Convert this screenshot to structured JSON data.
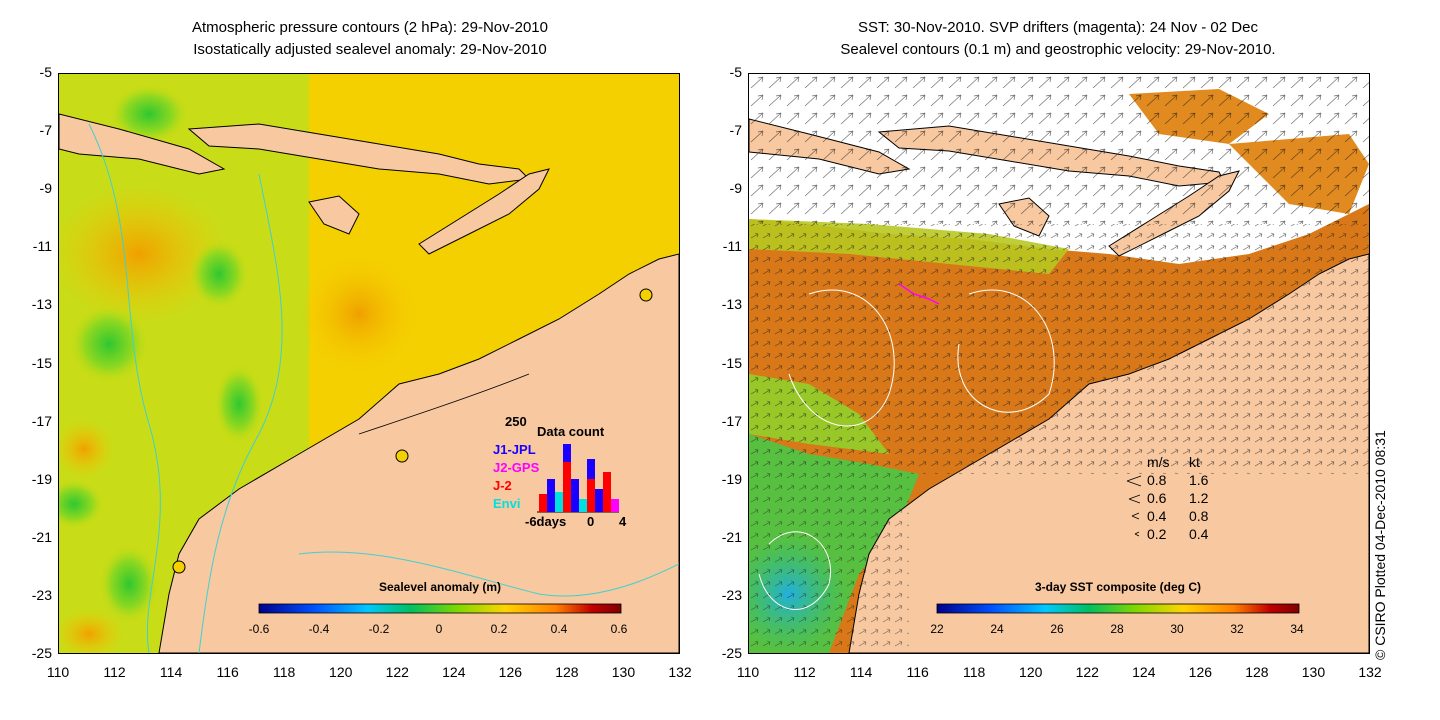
{
  "left_panel": {
    "title_line1": "Atmospheric pressure contours (2 hPa): 29-Nov-2010",
    "title_line2": "Isostatically adjusted sealevel anomaly: 29-Nov-2010",
    "colorbar": {
      "title": "Sealevel anomaly (m)",
      "ticks": [
        "-0.6",
        "-0.4",
        "-0.2",
        "0",
        "0.2",
        "0.4",
        "0.6"
      ],
      "colors": [
        "#00008b",
        "#0050ff",
        "#00c8ff",
        "#00c060",
        "#80d800",
        "#ffd400",
        "#ff8000",
        "#c00000",
        "#800000"
      ]
    },
    "data_count": {
      "title": "Data count",
      "max_label": "250",
      "sources": [
        {
          "name": "J1-JPL",
          "color": "#1a00ff"
        },
        {
          "name": "J2-GPS",
          "color": "#ff00ff"
        },
        {
          "name": "J-2",
          "color": "#ff0000"
        },
        {
          "name": "Envi",
          "color": "#00e0e0"
        }
      ],
      "x_labels": [
        "-6days",
        "0",
        "4"
      ]
    }
  },
  "right_panel": {
    "title_line1": "SST: 30-Nov-2010. SVP drifters (magenta): 24 Nov - 02 Dec",
    "title_line2": "Sealevel contours (0.1 m) and geostrophic velocity: 29-Nov-2010.",
    "colorbar": {
      "title": "3-day SST composite (deg C)",
      "ticks": [
        "22",
        "24",
        "26",
        "28",
        "30",
        "32",
        "34"
      ],
      "colors": [
        "#00008b",
        "#0050ff",
        "#00c8ff",
        "#00c060",
        "#80d800",
        "#ffd400",
        "#ff8000",
        "#c00000",
        "#800000"
      ]
    },
    "speed_key": {
      "header_ms": "m/s",
      "header_kt": "kt",
      "rows": [
        {
          "ms": "0.8",
          "kt": "1.6"
        },
        {
          "ms": "0.6",
          "kt": "1.2"
        },
        {
          "ms": "0.4",
          "kt": "0.8"
        },
        {
          "ms": "0.2",
          "kt": "0.4"
        }
      ]
    }
  },
  "axes": {
    "y_ticks": [
      "-5",
      "-7",
      "-9",
      "-11",
      "-13",
      "-15",
      "-17",
      "-19",
      "-21",
      "-23",
      "-25"
    ],
    "x_ticks": [
      "110",
      "112",
      "114",
      "116",
      "118",
      "120",
      "122",
      "124",
      "126",
      "128",
      "130",
      "132"
    ]
  },
  "credit": "© CSIRO Plotted 04-Dec-2010 08:31",
  "colors": {
    "land": "#f8c8a0",
    "contour": "#40d0d0"
  }
}
